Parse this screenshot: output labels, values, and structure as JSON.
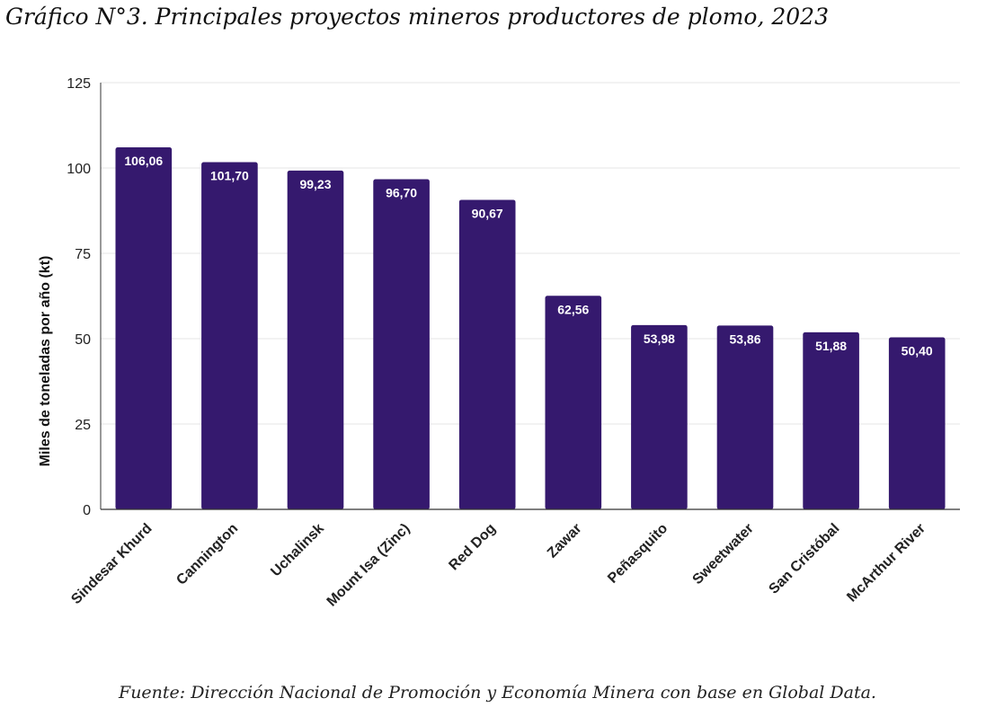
{
  "title": "Gráfico N°3. Principales proyectos mineros productores de plomo, 2023",
  "source": "Fuente: Dirección Nacional de Promoción y Economía Minera con base en Global Data.",
  "chart_data": {
    "type": "bar",
    "title": "Gráfico N°3. Principales proyectos mineros productores de plomo, 2023",
    "categories": [
      "Sindesar Khurd",
      "Cannington",
      "Uchalinsk",
      "Mount Isa (Zinc)",
      "Red Dog",
      "Zawar",
      "Peñasquito",
      "Sweetwater",
      "San Cristóbal",
      "McArthur River"
    ],
    "values": [
      106.06,
      101.7,
      99.23,
      96.7,
      90.67,
      62.56,
      53.98,
      53.86,
      51.88,
      50.4
    ],
    "data_labels": [
      "106,06",
      "101,70",
      "99,23",
      "96,70",
      "90,67",
      "62,56",
      "53,98",
      "53,86",
      "51,88",
      "50,40"
    ],
    "xlabel": "",
    "ylabel": "Miles de toneladas por año (kt)",
    "ylim": [
      0,
      125
    ],
    "yticks": [
      0,
      25,
      50,
      75,
      100,
      125
    ],
    "grid": true,
    "bar_color": "#35196e"
  }
}
